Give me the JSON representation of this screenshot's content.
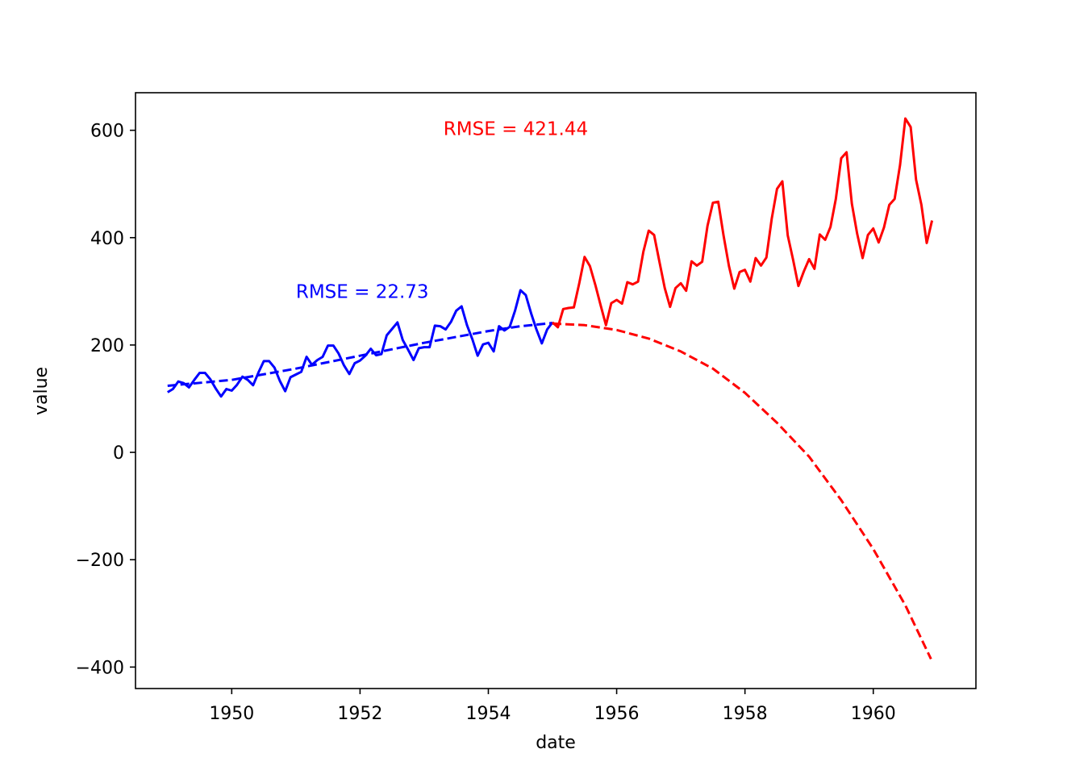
{
  "chart_data": {
    "type": "line",
    "title": "",
    "xlabel": "date",
    "ylabel": "value",
    "xlim": [
      1948.5,
      1961.6
    ],
    "ylim": [
      -440,
      670
    ],
    "x_ticks": [
      1950,
      1952,
      1954,
      1956,
      1958,
      1960
    ],
    "x_tick_labels": [
      "1950",
      "1952",
      "1954",
      "1956",
      "1958",
      "1960"
    ],
    "y_ticks": [
      -400,
      -200,
      0,
      200,
      400,
      600
    ],
    "y_tick_labels": [
      "−400",
      "−200",
      "0",
      "200",
      "400",
      "600"
    ],
    "grid": false,
    "annotations": [
      {
        "text": "RMSE = 22.73",
        "x": 1951.0,
        "y": 300,
        "color": "#0000ff"
      },
      {
        "text": "RMSE = 421.44",
        "x": 1953.3,
        "y": 603,
        "color": "#ff0000"
      }
    ],
    "series": [
      {
        "color": "#0000ff",
        "style": "solid",
        "x_start": 1949.0,
        "x_step": 0.0833333,
        "values": [
          112,
          118,
          132,
          129,
          121,
          135,
          148,
          148,
          136,
          119,
          104,
          118,
          115,
          126,
          141,
          135,
          125,
          149,
          170,
          170,
          158,
          133,
          114,
          140,
          145,
          150,
          178,
          163,
          172,
          178,
          199,
          199,
          184,
          162,
          146,
          166,
          171,
          180,
          193,
          181,
          183,
          218,
          230,
          242,
          209,
          191,
          172,
          194,
          196,
          196,
          236,
          235,
          229,
          243,
          264,
          272,
          237,
          211,
          180,
          201,
          204,
          188,
          235,
          227,
          234,
          264,
          302,
          293,
          259,
          229,
          203,
          229,
          242
        ]
      },
      {
        "color": "#0000ff",
        "style": "dashed",
        "x": [
          1949.0,
          1950.0,
          1951.0,
          1952.0,
          1953.0,
          1954.0,
          1954.5,
          1955.0
        ],
        "values": [
          124,
          135,
          156,
          180,
          204,
          226,
          235,
          241
        ]
      },
      {
        "color": "#ff0000",
        "style": "solid",
        "x_start": 1955.0,
        "x_step": 0.0833333,
        "values": [
          242,
          233,
          267,
          269,
          270,
          315,
          364,
          347,
          312,
          274,
          237,
          278,
          284,
          277,
          317,
          313,
          318,
          374,
          413,
          405,
          355,
          306,
          271,
          306,
          315,
          301,
          356,
          348,
          355,
          422,
          465,
          467,
          404,
          347,
          305,
          336,
          340,
          318,
          362,
          348,
          363,
          435,
          491,
          505,
          404,
          359,
          310,
          337,
          360,
          342,
          406,
          396,
          420,
          472,
          548,
          559,
          463,
          407,
          362,
          405,
          417,
          391,
          419,
          461,
          472,
          535,
          622,
          606,
          508,
          461,
          390,
          432
        ]
      },
      {
        "color": "#ff0000",
        "style": "dashed",
        "x": [
          1955.0,
          1955.5,
          1956.0,
          1956.5,
          1957.0,
          1957.5,
          1958.0,
          1958.5,
          1959.0,
          1959.5,
          1960.0,
          1960.5,
          1960.9
        ],
        "values": [
          240,
          237,
          228,
          212,
          188,
          156,
          111,
          55,
          -8,
          -89,
          -180,
          -285,
          -385
        ]
      }
    ]
  }
}
